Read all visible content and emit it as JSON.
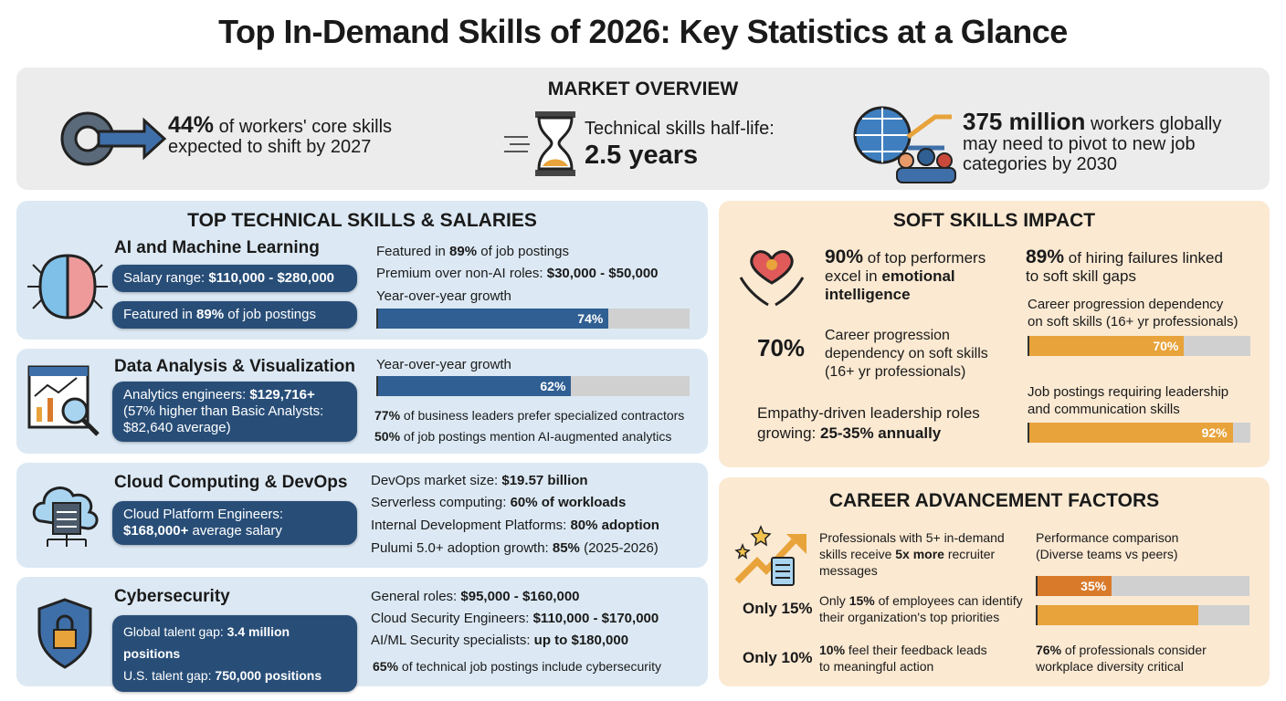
{
  "title": "Top In-Demand Skills of 2026: Key Statistics at a Glance",
  "colors": {
    "primary_blue": "#2f5f93",
    "pill_blue": "#284e78",
    "orange": "#e8a33a",
    "dark_orange": "#d97a2b",
    "track": "#d0d0d0"
  },
  "market": {
    "title": "MARKET OVERVIEW",
    "s1": {
      "b": "44%",
      "a": " of workers' core skills",
      "c": "expected to shift by 2027",
      "icon": "gear-arrow-icon"
    },
    "s2": {
      "a": "Technical skills half-life:",
      "b": "2.5 years",
      "icon": "hourglass-icon"
    },
    "s3": {
      "b": "375 million",
      "a": " workers globally",
      "c": "may need to pivot to new job",
      "d": "categories by 2030",
      "icon": "globe-people-icon"
    }
  },
  "tech": {
    "title": "TOP TECHNICAL SKILLS & SALARIES",
    "ai": {
      "name": "AI and Machine Learning",
      "icon": "brain-circuit-icon",
      "p1": {
        "a": "Salary range: ",
        "b": "$110,000 - $280,000"
      },
      "p2": {
        "a": "Featured in ",
        "b": "89%",
        "c": " of job postings"
      },
      "r1": {
        "a": "Featured in ",
        "b": "89%",
        "c": " of job postings"
      },
      "r2": {
        "a": "Premium over non-AI roles: ",
        "b": "$30,000 - $50,000"
      },
      "growth_label": "Year-over-year growth",
      "growth": 74,
      "growth_text": "74%"
    },
    "data": {
      "name": "Data Analysis & Visualization",
      "icon": "chart-magnifier-icon",
      "p1": {
        "a": "Analytics engineers: ",
        "b": "$129,716+",
        "c": "(57% higher than Basic Analysts:",
        "d": "$82,640 average)"
      },
      "growth_label": "Year-over-year growth",
      "growth": 62,
      "growth_text": "62%",
      "r1": {
        "b": "77%",
        "c": " of business leaders prefer specialized contractors"
      },
      "r2": {
        "b": "50%",
        "c": " of job postings mention AI-augmented analytics"
      }
    },
    "cloud": {
      "name": "Cloud Computing & DevOps",
      "icon": "cloud-server-icon",
      "p1": {
        "a": "Cloud Platform Engineers:",
        "b": "$168,000+",
        "c": " average salary"
      },
      "r1": {
        "a": "DevOps market size: ",
        "b": "$19.57 billion"
      },
      "r2": {
        "a": "Serverless computing: ",
        "b": "60% of workloads"
      },
      "r3": {
        "a": "Internal Development Platforms: ",
        "b": "80% adoption"
      },
      "r4": {
        "a": "Pulumi 5.0+ adoption growth: ",
        "b": "85%",
        "c": " (2025-2026)"
      }
    },
    "cyber": {
      "name": "Cybersecurity",
      "icon": "shield-lock-icon",
      "p1": {
        "a": "Global talent gap: ",
        "b": "3.4 million positions"
      },
      "p2": {
        "a": "U.S. talent gap: ",
        "b": "750,000 positions"
      },
      "r1": {
        "a": "General roles: ",
        "b": "$95,000 - $160,000"
      },
      "r2": {
        "a": "Cloud Security Engineers: ",
        "b": "$110,000 - $170,000"
      },
      "r3": {
        "a": "AI/ML Security specialists: ",
        "b": "up to $180,000"
      },
      "r4": {
        "b": "65%",
        "c": " of technical job postings include cybersecurity"
      }
    }
  },
  "soft": {
    "title": "SOFT SKILLS IMPACT",
    "icon": "heart-hands-icon",
    "s1": {
      "b": "90%",
      "a": " of top performers",
      "c": "excel in ",
      "d": "emotional",
      "e": "intelligence"
    },
    "s2": {
      "big": "70%",
      "a": "Career progression",
      "c": "dependency on soft skills",
      "d": "(16+ yr professionals)"
    },
    "s3": {
      "a": "Empathy-driven leadership roles",
      "c": "growing: ",
      "b": "25-35% annually"
    },
    "s4": {
      "b": "89%",
      "a": " of hiring failures linked",
      "c": "to soft skill gaps"
    },
    "bar1": {
      "l1": "Career progression dependency",
      "l2": "on soft skills (16+ yr professionals)",
      "value": 70,
      "text": "70%"
    },
    "bar2": {
      "l1": "Job postings requiring leadership",
      "l2": "and communication skills",
      "value": 92,
      "text": "92%"
    }
  },
  "career": {
    "title": "CAREER ADVANCEMENT FACTORS",
    "icon": "rising-arrow-stars-icon",
    "s1": {
      "a": "Professionals with 5+ in-demand",
      "c": "skills receive ",
      "b": "5x more",
      "d": " recruiter",
      "e": "messages"
    },
    "s2": {
      "big": "Only 15%",
      "a": "Only ",
      "b": "15%",
      "c": " of employees can identify",
      "d": "their organization's top priorities"
    },
    "s3": {
      "big": "Only 10%",
      "b": "10%",
      "c": " feel their feedback leads",
      "d": "to meaningful action"
    },
    "perf": {
      "l1": "Performance comparison",
      "l2": "(Diverse teams vs peers)",
      "bars": [
        {
          "value": 35,
          "text": "35%"
        },
        {
          "value": 76,
          "text": ""
        }
      ]
    },
    "s4": {
      "b": "76%",
      "c": " of professionals consider",
      "d": "workplace diversity critical"
    }
  }
}
